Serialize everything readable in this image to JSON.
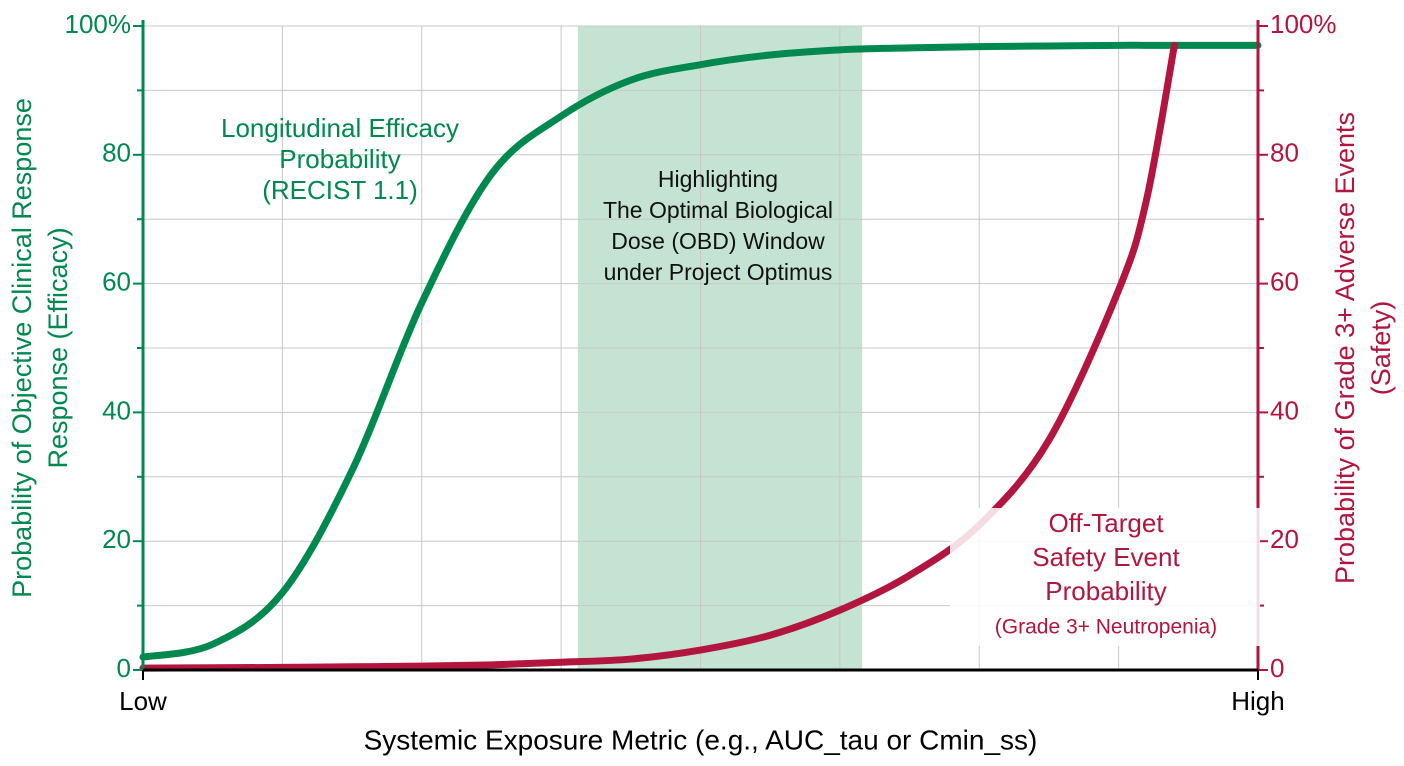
{
  "chart_data": {
    "type": "line",
    "xlabel": "Systemic Exposure Metric (e.g., AUC_tau or Cmin_ss)",
    "ylabel": [
      "Probability of Objective Clinical Response",
      "Response (Efficacy)"
    ],
    "y2label": [
      "Probability of Grade 3+ Adverse Events",
      "(Safety)"
    ],
    "xlim": [
      0,
      8
    ],
    "xticks": [
      {
        "value": 0,
        "label": "Low"
      },
      {
        "value": 8,
        "label": "High"
      }
    ],
    "xgrid": [
      1,
      2,
      3,
      4,
      5,
      6,
      7
    ],
    "ylim": [
      0,
      100
    ],
    "yticks": [
      0,
      20,
      40,
      60,
      80,
      {
        "value": 100,
        "label": "100%"
      }
    ],
    "yminor": [
      10,
      30,
      50,
      70,
      90
    ],
    "y2lim": [
      0,
      100
    ],
    "y2ticks": [
      0,
      20,
      40,
      60,
      80,
      {
        "value": 100,
        "label": "100%"
      }
    ],
    "y2minor": [
      10,
      30,
      50,
      70,
      90
    ],
    "grid": true,
    "x": [
      0,
      0.5,
      1,
      1.5,
      2,
      2.5,
      3,
      3.5,
      4,
      4.5,
      5,
      5.5,
      6,
      6.5,
      7,
      7.2,
      7.4,
      8
    ],
    "series": [
      {
        "color": "#00894f",
        "axis": "y",
        "values": [
          2,
          4,
          12,
          31,
          57,
          77,
          86,
          91.6,
          94,
          95.5,
          96.3,
          96.6,
          96.8,
          96.9,
          97,
          97,
          97,
          97
        ]
      },
      {
        "color": "#b2163f",
        "axis": "y2",
        "values": [
          0.3,
          0.35,
          0.4,
          0.5,
          0.6,
          0.8,
          1.2,
          1.7,
          3.1,
          5.4,
          9.3,
          14.7,
          22.5,
          35.7,
          59,
          73,
          97,
          null
        ]
      }
    ],
    "highlight": {
      "x": [
        3.12,
        5.16
      ],
      "color": "#c5e3d2",
      "label": [
        "Highlighting",
        "The Optimal Biological",
        "Dose (OBD) Window",
        "under Project Optimus"
      ]
    },
    "annotations": [
      {
        "lines": [
          "Longitudinal Efficacy",
          "Probability",
          "(RECIST 1.1)"
        ],
        "color": "#00894f"
      },
      {
        "lines": [
          "Off-Target",
          "Safety Event",
          "Probability",
          "(Grade 3+ Neutropenia)"
        ],
        "color": "#b2163f"
      }
    ]
  }
}
